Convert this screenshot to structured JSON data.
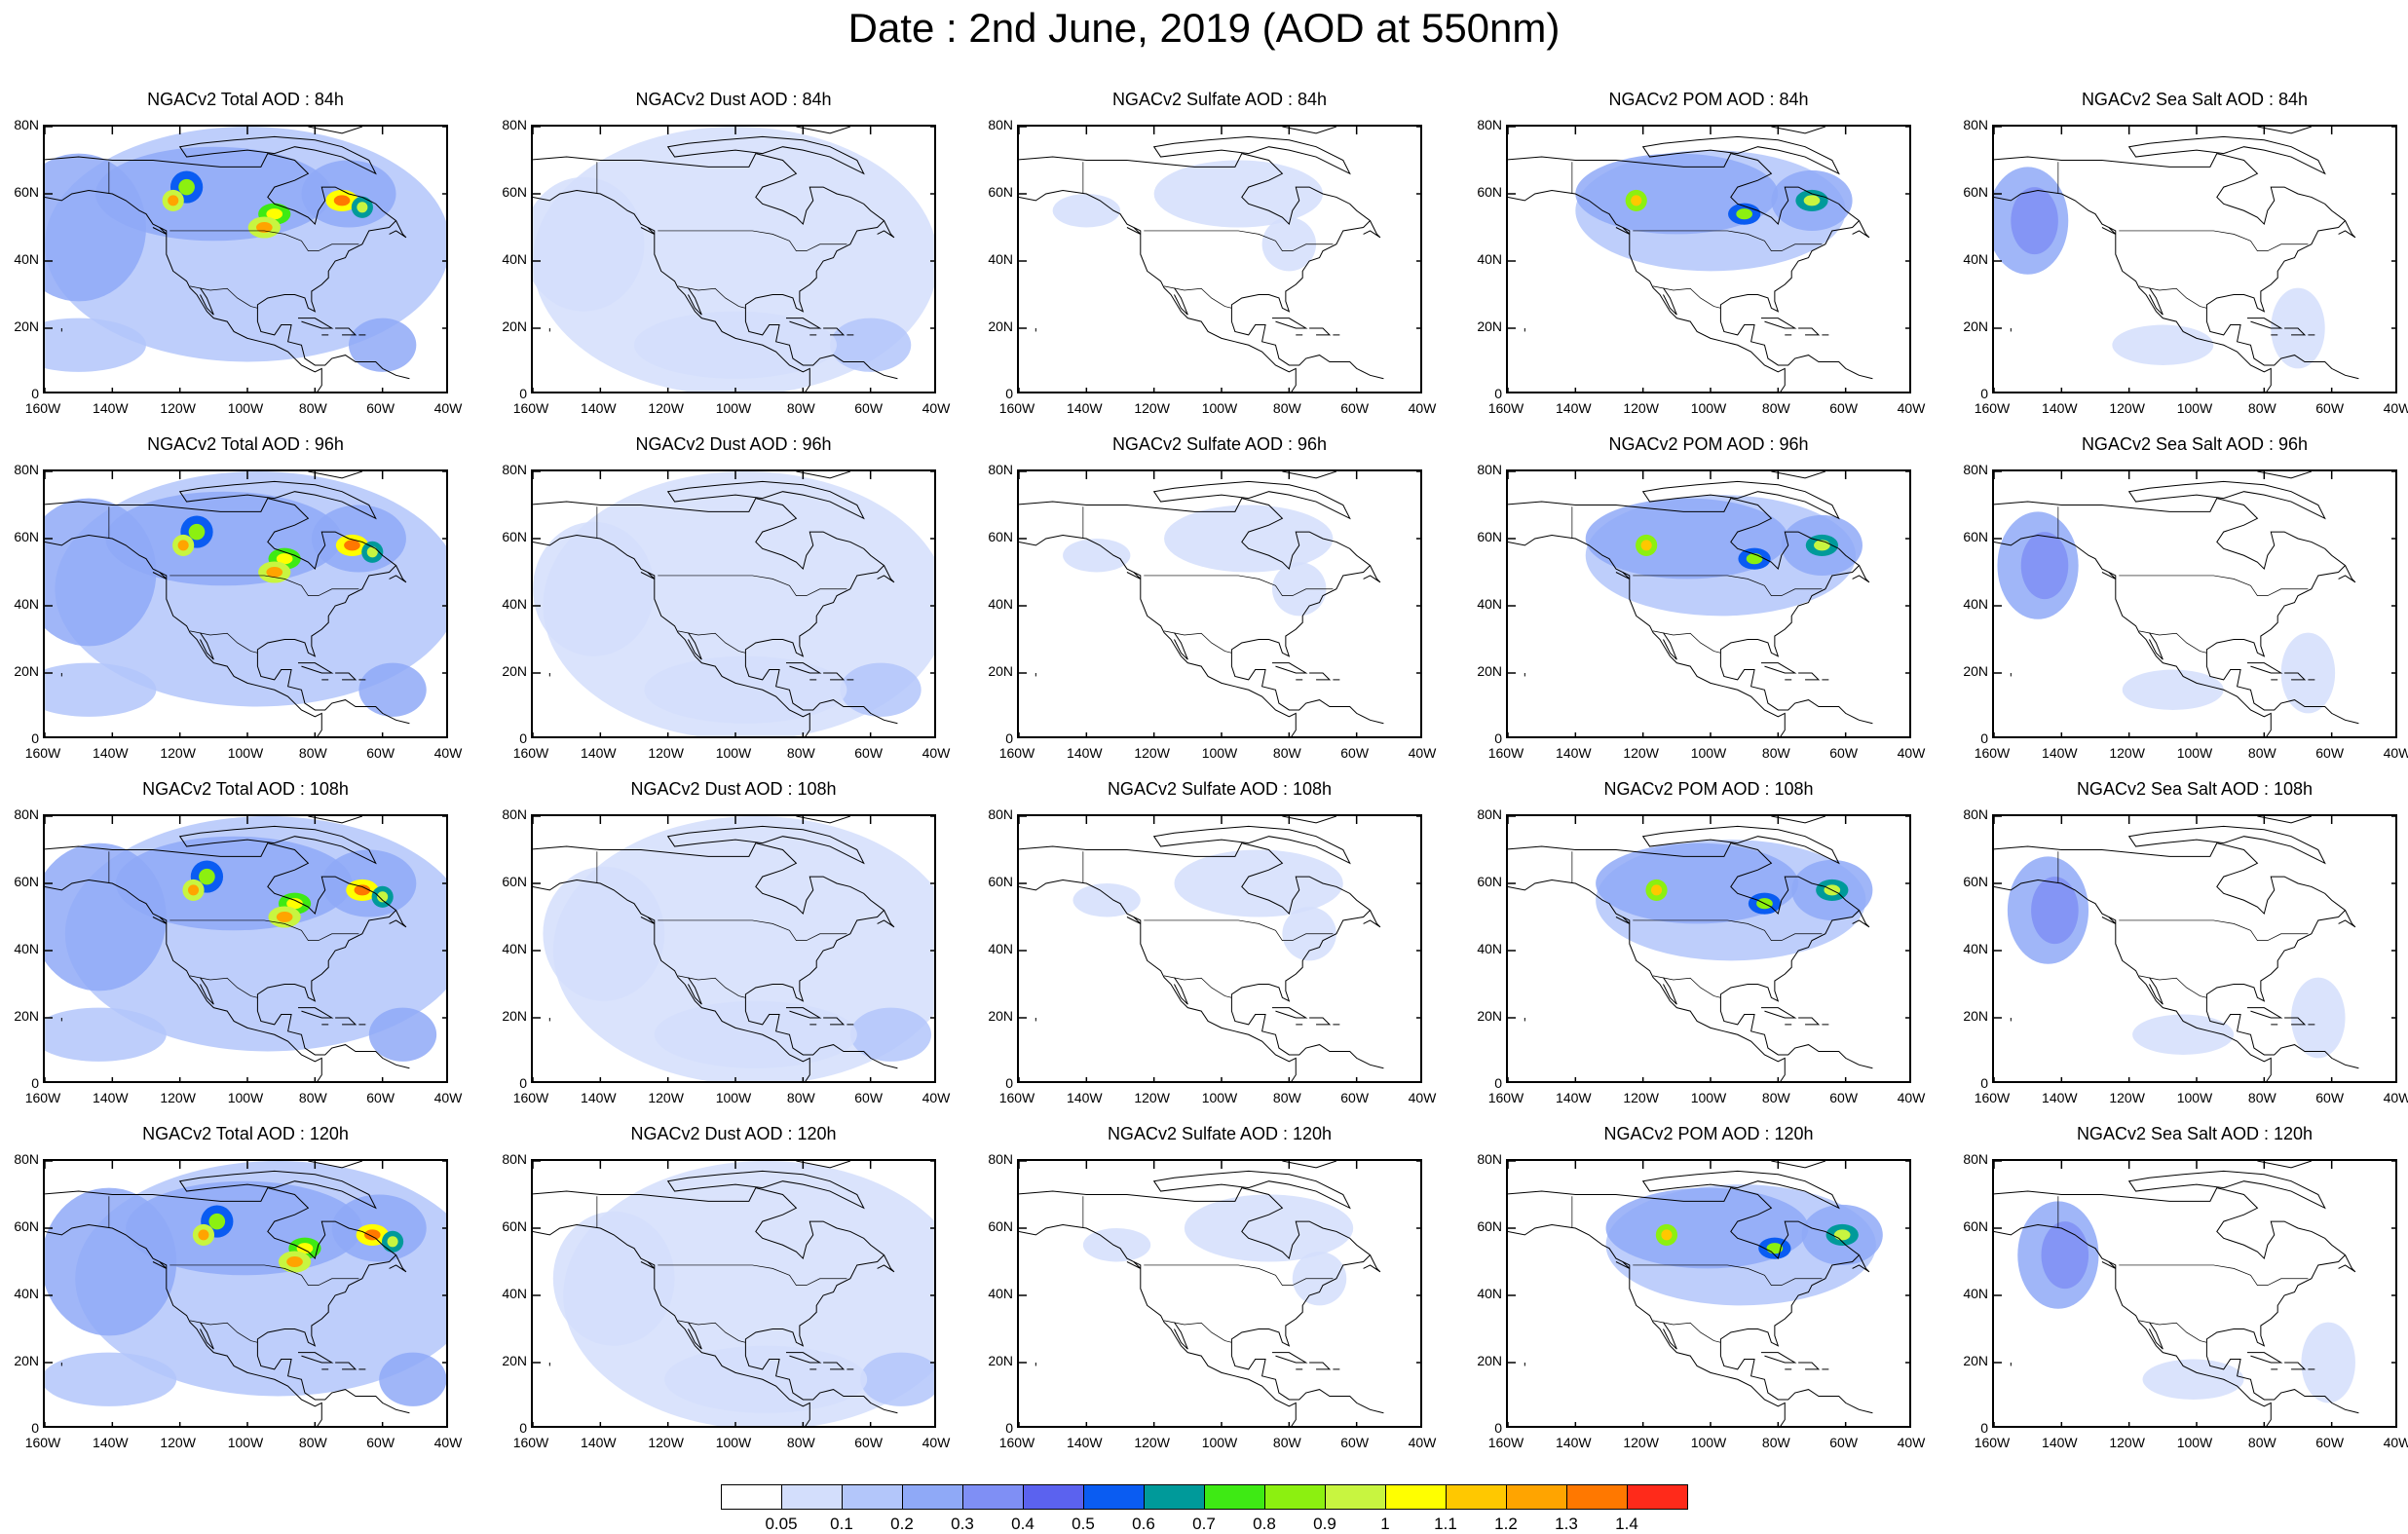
{
  "title": "Date : 2nd June, 2019 (AOD at 550nm)",
  "hours": [
    "84h",
    "96h",
    "108h",
    "120h"
  ],
  "columns": [
    {
      "id": "total",
      "titles": [
        "NGACv2 Total AOD : 84h",
        "NGACv2 Total AOD : 96h",
        "NGACv2 Total AOD : 108h",
        "NGACv2 Total AOD : 120h"
      ]
    },
    {
      "id": "dust",
      "titles": [
        "NGACv2 Dust AOD : 84h",
        "NGACv2 Dust AOD : 96h",
        "NGACv2 Dust AOD : 108h",
        "NGACv2 Dust AOD : 120h"
      ]
    },
    {
      "id": "sulfate",
      "titles": [
        "NGACv2 Sulfate AOD : 84h",
        "NGACv2 Sulfate AOD : 96h",
        "NGACv2 Sulfate AOD : 108h",
        "NGACv2 Sulfate AOD : 120h"
      ]
    },
    {
      "id": "pom",
      "titles": [
        "NGACv2 POM AOD : 84h",
        "NGACv2 POM AOD : 96h",
        "NGACv2 POM AOD : 108h",
        "NGACv2 POM AOD : 120h"
      ]
    },
    {
      "id": "seasalt",
      "titles": [
        "NGACv2 Sea Salt AOD : 84h",
        "NGACv2 Sea Salt AOD : 96h",
        "NGACv2 Sea Salt AOD : 108h",
        "NGACv2 Sea Salt  AOD : 120h"
      ]
    }
  ],
  "y_ticks": [
    "80N",
    "60N",
    "40N",
    "20N",
    "0"
  ],
  "x_ticks": [
    "160W",
    "140W",
    "120W",
    "100W",
    "80W",
    "60W",
    "40W"
  ],
  "colorbar": {
    "colors": [
      "#ffffff",
      "#d3defc",
      "#b3c6fa",
      "#8fa9f7",
      "#7f8ff5",
      "#5b62ef",
      "#0a5cf2",
      "#009a9a",
      "#3eea14",
      "#8cf010",
      "#c8f540",
      "#ffff00",
      "#ffc800",
      "#ffa400",
      "#ff7800",
      "#ff2a1a"
    ],
    "labels": [
      "0.05",
      "0.1",
      "0.2",
      "0.3",
      "0.4",
      "0.5",
      "0.6",
      "0.7",
      "0.8",
      "0.9",
      "1",
      "1.1",
      "1.2",
      "1.3",
      "1.4"
    ]
  }
}
